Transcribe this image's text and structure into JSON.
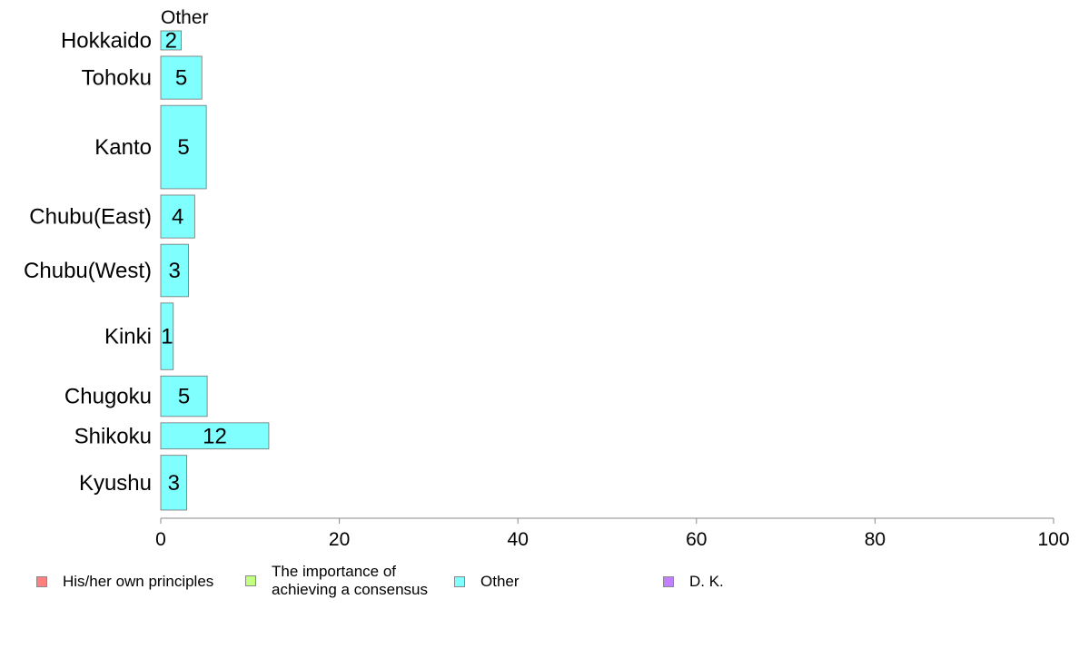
{
  "chart_data": {
    "type": "bar",
    "orientation": "horizontal",
    "title": "Other",
    "categories": [
      "Hokkaido",
      "Tohoku",
      "Kanto",
      "Chubu(East)",
      "Chubu(West)",
      "Kinki",
      "Chugoku",
      "Shikoku",
      "Kyushu"
    ],
    "values": [
      2,
      5,
      5,
      4,
      3,
      1,
      5,
      12,
      3
    ],
    "bar_values": [
      2.3,
      4.6,
      5.1,
      3.8,
      3.1,
      1.4,
      5.2,
      12.1,
      2.9
    ],
    "relative_bar_thickness": [
      0.4,
      0.9,
      1.75,
      0.9,
      1.1,
      1.4,
      0.85,
      0.55,
      1.15
    ],
    "xlim": [
      0,
      100
    ],
    "xticks": [
      0,
      20,
      40,
      60,
      80,
      100
    ],
    "xlabel": "",
    "ylabel": "",
    "grid": false,
    "series_color": "#80FFFF",
    "legend_position": "bottom",
    "legend": [
      {
        "label": "His/her own principles",
        "color": "#FF8080"
      },
      {
        "label": "The importance of\nachieving a consensus",
        "color": "#C0FF80"
      },
      {
        "label": "Other",
        "color": "#80FFFF"
      },
      {
        "label": "D. K.",
        "color": "#C080FF"
      }
    ]
  }
}
